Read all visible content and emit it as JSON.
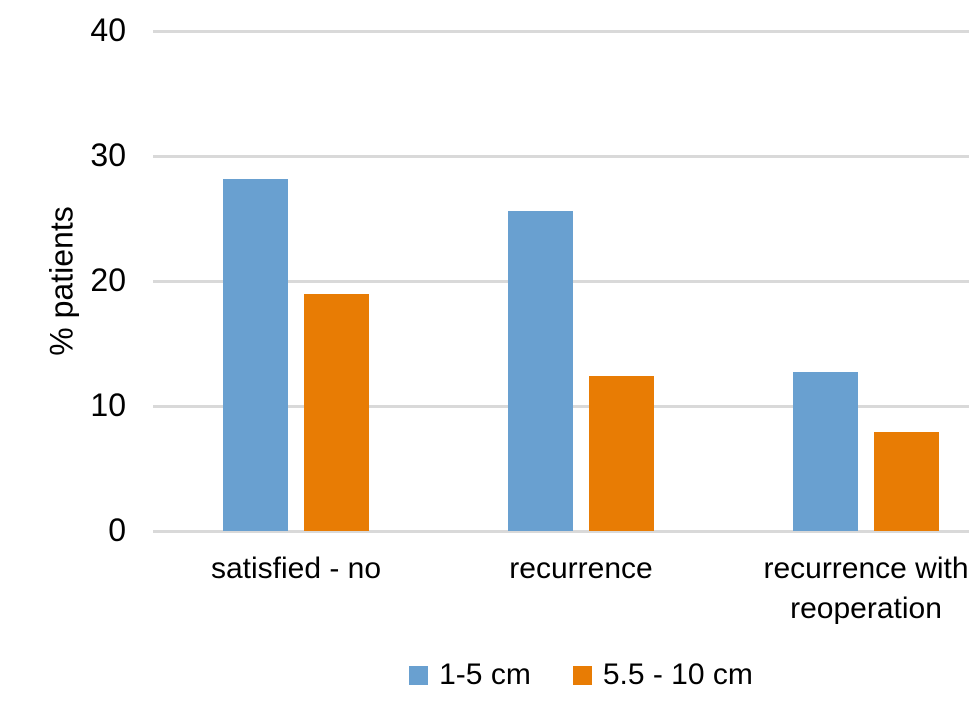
{
  "chart_data": {
    "type": "bar",
    "title": "",
    "ylabel": "% patients",
    "xlabel": "",
    "categories": [
      "satisfied - no",
      "recurrence",
      "recurrence with reoperation"
    ],
    "series": [
      {
        "name": "1-5 cm",
        "color": "#69A0D0",
        "values": [
          28.2,
          25.6,
          12.7
        ]
      },
      {
        "name": "5.5 - 10 cm",
        "color": "#E87C04",
        "values": [
          19.0,
          12.4,
          7.9
        ]
      }
    ],
    "ylim": [
      0,
      40
    ],
    "yticks": [
      0,
      10,
      20,
      30,
      40
    ],
    "grid": "horizontal",
    "gridline_color": "#d9d9d9",
    "legend_position": "bottom",
    "text_color": "#000000"
  }
}
